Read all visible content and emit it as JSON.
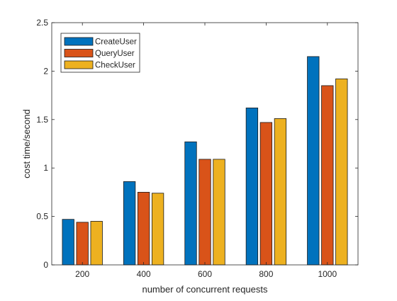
{
  "chart_data": {
    "type": "bar",
    "categories": [
      "200",
      "400",
      "600",
      "800",
      "1000"
    ],
    "series": [
      {
        "name": "CreateUser",
        "color": "#0072BD",
        "values": [
          0.47,
          0.86,
          1.27,
          1.62,
          2.15
        ]
      },
      {
        "name": "QueryUser",
        "color": "#D95319",
        "values": [
          0.44,
          0.75,
          1.09,
          1.47,
          1.85
        ]
      },
      {
        "name": "CheckUser",
        "color": "#EDB120",
        "values": [
          0.45,
          0.74,
          1.09,
          1.51,
          1.92
        ]
      }
    ],
    "xlabel": "number of concurrent requests",
    "ylabel": "cost time/second",
    "ylim": [
      0,
      2.5
    ],
    "yticks": [
      "0",
      "0.5",
      "1",
      "1.5",
      "2",
      "2.5"
    ],
    "grid": false,
    "legend_position": "top-left"
  }
}
